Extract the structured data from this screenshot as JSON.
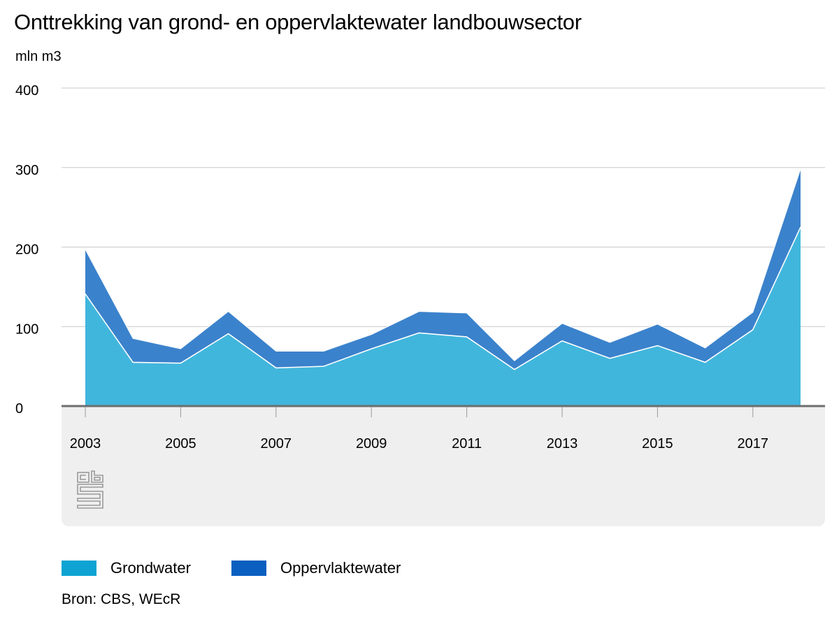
{
  "title": "Onttrekking van grond- en oppervlaktewater landbouwsector",
  "unit_label": "mln m3",
  "source": "Bron: CBS, WEcR",
  "logo": {
    "name": "cbs-logo",
    "text": "cbs"
  },
  "colors": {
    "grondwater": "#41b6dc",
    "oppervlaktewater": "#3b82cc",
    "legend_grondwater": "#0ea3d2",
    "legend_oppervlaktewater": "#0b5fc0",
    "grid": "#c8c8c8",
    "baseline": "#6e6e6e",
    "band": "#efefef"
  },
  "chart_data": {
    "type": "area",
    "stacked": true,
    "x": [
      2003,
      2004,
      2005,
      2006,
      2007,
      2008,
      2009,
      2010,
      2011,
      2012,
      2013,
      2014,
      2015,
      2016,
      2017,
      2018
    ],
    "xticks": [
      "2003",
      "2005",
      "2007",
      "2009",
      "2011",
      "2013",
      "2015",
      "2017"
    ],
    "yticks": [
      "0",
      "100",
      "200",
      "300",
      "400"
    ],
    "ylim": [
      0,
      400
    ],
    "grid": true,
    "legend_position": "bottom-left",
    "series": [
      {
        "name": "Grondwater",
        "values": [
          141,
          55,
          54,
          91,
          48,
          50,
          72,
          92,
          87,
          46,
          82,
          60,
          76,
          55,
          96,
          225
        ]
      },
      {
        "name": "Oppervlaktewater",
        "values": [
          56,
          30,
          18,
          28,
          21,
          19,
          18,
          27,
          30,
          11,
          22,
          20,
          27,
          18,
          22,
          73
        ]
      }
    ]
  }
}
